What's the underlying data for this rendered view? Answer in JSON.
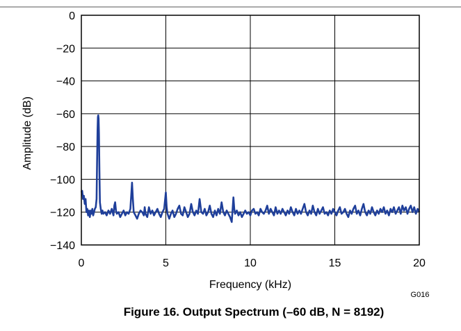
{
  "figure": {
    "caption": "Figure 16. Output Spectrum (–60 dB, N = 8192)",
    "code": "G016"
  },
  "colors": {
    "series": "#1f3f9a",
    "grid": "#000000",
    "frame": "#000000",
    "rule": "#555555"
  },
  "chart_data": {
    "type": "line",
    "title": "",
    "xlabel": "Frequency (kHz)",
    "ylabel": "Amplitude (dB)",
    "xlim": [
      0,
      20
    ],
    "ylim": [
      -140,
      0
    ],
    "xticks": [
      0,
      5,
      10,
      15,
      20
    ],
    "xtick_labels": [
      "0",
      "5",
      "10",
      "15",
      "20"
    ],
    "yticks": [
      0,
      -20,
      -40,
      -60,
      -80,
      -100,
      -120,
      -140
    ],
    "ytick_labels": [
      "0",
      "−20",
      "−40",
      "−60",
      "−80",
      "−100",
      "−120",
      "−140"
    ],
    "grid": true,
    "legend": "none",
    "series": [
      {
        "noise_floor_db": -121,
        "points": [
          [
            0.0,
            -108
          ],
          [
            0.05,
            -107
          ],
          [
            0.1,
            -112
          ],
          [
            0.15,
            -110
          ],
          [
            0.2,
            -115
          ],
          [
            0.25,
            -112
          ],
          [
            0.3,
            -120
          ],
          [
            0.35,
            -118
          ],
          [
            0.4,
            -122
          ],
          [
            0.45,
            -119
          ],
          [
            0.5,
            -123
          ],
          [
            0.55,
            -119
          ],
          [
            0.6,
            -121
          ],
          [
            0.65,
            -118
          ],
          [
            0.7,
            -122
          ],
          [
            0.75,
            -120
          ],
          [
            0.8,
            -118
          ],
          [
            0.85,
            -117
          ],
          [
            0.9,
            -112
          ],
          [
            0.93,
            -90
          ],
          [
            0.96,
            -70
          ],
          [
            0.98,
            -62
          ],
          [
            1.0,
            -61
          ],
          [
            1.02,
            -63
          ],
          [
            1.04,
            -72
          ],
          [
            1.07,
            -95
          ],
          [
            1.1,
            -114
          ],
          [
            1.15,
            -118
          ],
          [
            1.2,
            -121
          ],
          [
            1.25,
            -119
          ],
          [
            1.3,
            -121
          ],
          [
            1.4,
            -120
          ],
          [
            1.5,
            -122
          ],
          [
            1.6,
            -119
          ],
          [
            1.7,
            -121
          ],
          [
            1.8,
            -118
          ],
          [
            1.9,
            -122
          ],
          [
            1.95,
            -116
          ],
          [
            2.0,
            -114
          ],
          [
            2.05,
            -119
          ],
          [
            2.1,
            -121
          ],
          [
            2.2,
            -120
          ],
          [
            2.3,
            -123
          ],
          [
            2.4,
            -121
          ],
          [
            2.5,
            -119
          ],
          [
            2.6,
            -122
          ],
          [
            2.7,
            -120
          ],
          [
            2.8,
            -121
          ],
          [
            2.9,
            -118
          ],
          [
            2.95,
            -110
          ],
          [
            3.0,
            -102
          ],
          [
            3.05,
            -112
          ],
          [
            3.1,
            -120
          ],
          [
            3.2,
            -122
          ],
          [
            3.3,
            -124
          ],
          [
            3.4,
            -121
          ],
          [
            3.5,
            -119
          ],
          [
            3.6,
            -120
          ],
          [
            3.7,
            -122
          ],
          [
            3.75,
            -117
          ],
          [
            3.8,
            -121
          ],
          [
            3.9,
            -123
          ],
          [
            4.0,
            -117
          ],
          [
            4.1,
            -121
          ],
          [
            4.2,
            -119
          ],
          [
            4.3,
            -122
          ],
          [
            4.4,
            -120
          ],
          [
            4.5,
            -118
          ],
          [
            4.6,
            -121
          ],
          [
            4.7,
            -123
          ],
          [
            4.8,
            -120
          ],
          [
            4.9,
            -118
          ],
          [
            5.0,
            -108
          ],
          [
            5.05,
            -117
          ],
          [
            5.1,
            -121
          ],
          [
            5.2,
            -124
          ],
          [
            5.3,
            -121
          ],
          [
            5.4,
            -119
          ],
          [
            5.5,
            -123
          ],
          [
            5.6,
            -121
          ],
          [
            5.7,
            -118
          ],
          [
            5.8,
            -116
          ],
          [
            5.9,
            -121
          ],
          [
            6.0,
            -122
          ],
          [
            6.1,
            -117
          ],
          [
            6.2,
            -120
          ],
          [
            6.3,
            -123
          ],
          [
            6.4,
            -121
          ],
          [
            6.5,
            -115
          ],
          [
            6.6,
            -120
          ],
          [
            6.7,
            -122
          ],
          [
            6.8,
            -119
          ],
          [
            6.9,
            -121
          ],
          [
            7.0,
            -112
          ],
          [
            7.1,
            -120
          ],
          [
            7.2,
            -121
          ],
          [
            7.3,
            -118
          ],
          [
            7.4,
            -122
          ],
          [
            7.5,
            -120
          ],
          [
            7.6,
            -116
          ],
          [
            7.7,
            -121
          ],
          [
            7.8,
            -123
          ],
          [
            7.9,
            -119
          ],
          [
            8.0,
            -122
          ],
          [
            8.1,
            -118
          ],
          [
            8.2,
            -121
          ],
          [
            8.3,
            -114
          ],
          [
            8.4,
            -120
          ],
          [
            8.5,
            -122
          ],
          [
            8.6,
            -119
          ],
          [
            8.7,
            -121
          ],
          [
            8.8,
            -123
          ],
          [
            8.9,
            -126
          ],
          [
            9.0,
            -111
          ],
          [
            9.05,
            -118
          ],
          [
            9.1,
            -121
          ],
          [
            9.2,
            -119
          ],
          [
            9.3,
            -122
          ],
          [
            9.4,
            -120
          ],
          [
            9.5,
            -123
          ],
          [
            9.6,
            -121
          ],
          [
            9.7,
            -119
          ],
          [
            9.8,
            -121
          ],
          [
            9.9,
            -120
          ],
          [
            10.0,
            -122
          ],
          [
            10.1,
            -119
          ],
          [
            10.2,
            -118
          ],
          [
            10.3,
            -121
          ],
          [
            10.4,
            -120
          ],
          [
            10.5,
            -122
          ],
          [
            10.6,
            -118
          ],
          [
            10.7,
            -120
          ],
          [
            10.8,
            -121
          ],
          [
            10.9,
            -119
          ],
          [
            11.0,
            -116
          ],
          [
            11.1,
            -121
          ],
          [
            11.2,
            -118
          ],
          [
            11.3,
            -120
          ],
          [
            11.4,
            -122
          ],
          [
            11.5,
            -117
          ],
          [
            11.6,
            -121
          ],
          [
            11.7,
            -119
          ],
          [
            11.8,
            -121
          ],
          [
            11.9,
            -118
          ],
          [
            12.0,
            -120
          ],
          [
            12.1,
            -122
          ],
          [
            12.2,
            -119
          ],
          [
            12.3,
            -121
          ],
          [
            12.4,
            -117
          ],
          [
            12.5,
            -120
          ],
          [
            12.6,
            -122
          ],
          [
            12.7,
            -118
          ],
          [
            12.8,
            -121
          ],
          [
            12.9,
            -119
          ],
          [
            13.0,
            -121
          ],
          [
            13.1,
            -118
          ],
          [
            13.2,
            -115
          ],
          [
            13.3,
            -120
          ],
          [
            13.4,
            -122
          ],
          [
            13.5,
            -119
          ],
          [
            13.6,
            -121
          ],
          [
            13.7,
            -116
          ],
          [
            13.8,
            -120
          ],
          [
            13.9,
            -122
          ],
          [
            14.0,
            -118
          ],
          [
            14.1,
            -121
          ],
          [
            14.2,
            -119
          ],
          [
            14.3,
            -117
          ],
          [
            14.4,
            -121
          ],
          [
            14.5,
            -120
          ],
          [
            14.6,
            -122
          ],
          [
            14.7,
            -119
          ],
          [
            14.8,
            -121
          ],
          [
            14.9,
            -118
          ],
          [
            15.0,
            -120
          ],
          [
            15.1,
            -122
          ],
          [
            15.2,
            -119
          ],
          [
            15.3,
            -117
          ],
          [
            15.4,
            -121
          ],
          [
            15.5,
            -120
          ],
          [
            15.6,
            -118
          ],
          [
            15.7,
            -121
          ],
          [
            15.8,
            -123
          ],
          [
            15.9,
            -119
          ],
          [
            16.0,
            -121
          ],
          [
            16.1,
            -118
          ],
          [
            16.2,
            -116
          ],
          [
            16.3,
            -121
          ],
          [
            16.4,
            -119
          ],
          [
            16.5,
            -122
          ],
          [
            16.6,
            -118
          ],
          [
            16.7,
            -115
          ],
          [
            16.8,
            -120
          ],
          [
            16.9,
            -122
          ],
          [
            17.0,
            -119
          ],
          [
            17.1,
            -121
          ],
          [
            17.2,
            -117
          ],
          [
            17.3,
            -120
          ],
          [
            17.4,
            -122
          ],
          [
            17.5,
            -119
          ],
          [
            17.6,
            -121
          ],
          [
            17.7,
            -118
          ],
          [
            17.8,
            -120
          ],
          [
            17.9,
            -117
          ],
          [
            18.0,
            -121
          ],
          [
            18.1,
            -119
          ],
          [
            18.2,
            -122
          ],
          [
            18.3,
            -118
          ],
          [
            18.4,
            -120
          ],
          [
            18.5,
            -117
          ],
          [
            18.6,
            -121
          ],
          [
            18.7,
            -119
          ],
          [
            18.8,
            -117
          ],
          [
            18.9,
            -121
          ],
          [
            19.0,
            -116
          ],
          [
            19.1,
            -119
          ],
          [
            19.2,
            -117
          ],
          [
            19.3,
            -121
          ],
          [
            19.4,
            -118
          ],
          [
            19.5,
            -116
          ],
          [
            19.6,
            -120
          ],
          [
            19.7,
            -117
          ],
          [
            19.8,
            -121
          ],
          [
            19.9,
            -118
          ],
          [
            20.0,
            -120
          ]
        ]
      }
    ]
  }
}
